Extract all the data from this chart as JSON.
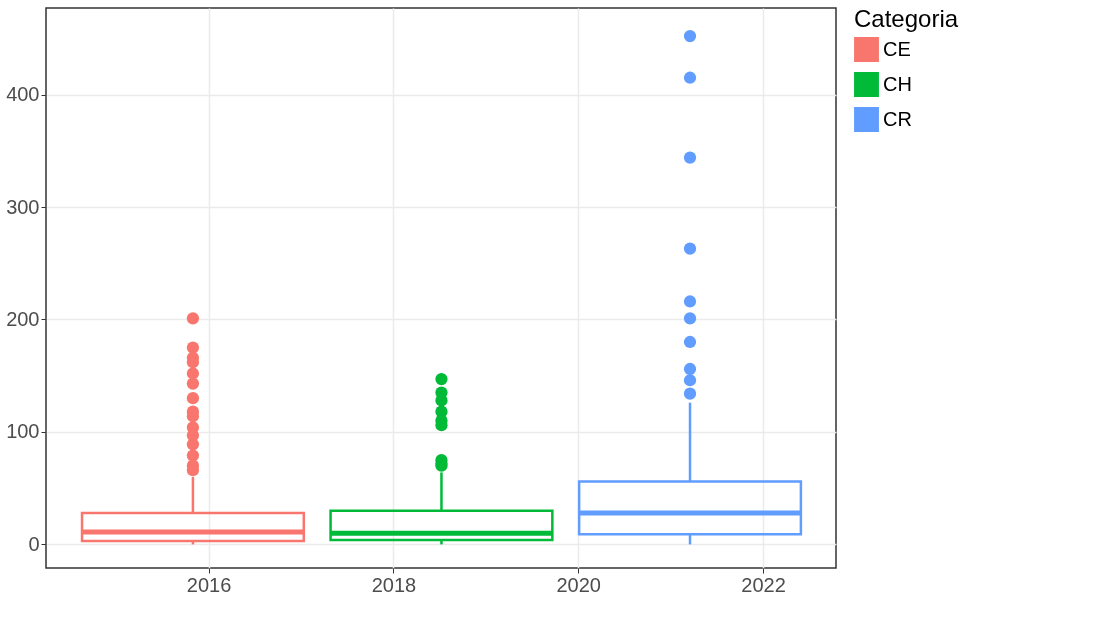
{
  "chart_data": {
    "type": "box",
    "legend_title": "Categoria",
    "legend": "right",
    "grid": true,
    "xlim": [
      2014.24,
      2022.79
    ],
    "xticks": [
      2016,
      2018,
      2020,
      2022
    ],
    "ylim": [
      -21,
      477
    ],
    "yticks": [
      0,
      100,
      200,
      300,
      400
    ],
    "x": [
      2015.83,
      2018.52,
      2021.21
    ],
    "series": [
      {
        "name": "CE",
        "color": "#f8766d",
        "boxes": [
          {
            "low": 0,
            "q1": 3,
            "median": 11,
            "q3": 28,
            "high": 60,
            "outliers": [
              201,
              175,
              166,
              162,
              152,
              143,
              130,
              118,
              114,
              104,
              97,
              89,
              79,
              70,
              66
            ]
          },
          null,
          null
        ]
      },
      {
        "name": "CH",
        "color": "#00ba38",
        "boxes": [
          null,
          {
            "low": 0,
            "q1": 4,
            "median": 10,
            "q3": 30,
            "high": 64,
            "outliers": [
              147,
              135,
              128,
              118,
              110,
              106,
              75,
              72,
              70
            ]
          },
          null
        ]
      },
      {
        "name": "CR",
        "color": "#619cff",
        "boxes": [
          null,
          null,
          {
            "low": 0,
            "q1": 9,
            "median": 28,
            "q3": 56,
            "high": 126,
            "outliers": [
              452,
              415,
              344,
              263,
              216,
              201,
              180,
              156,
              146,
              134
            ]
          }
        ]
      }
    ]
  }
}
